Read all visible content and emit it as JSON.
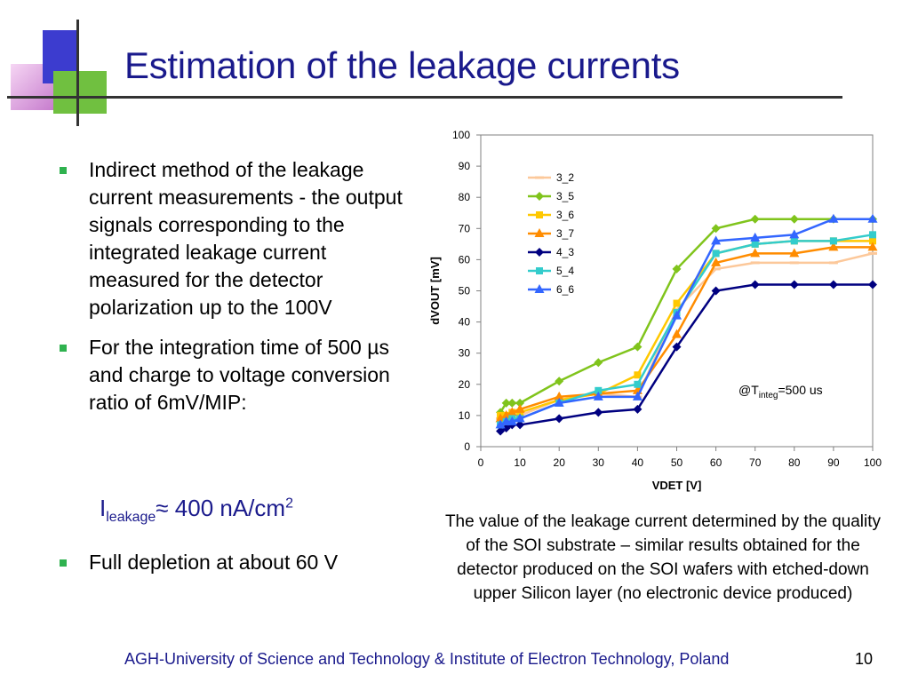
{
  "slide": {
    "title": "Estimation of the leakage currents",
    "bullets": [
      "Indirect method of the leakage current measurements - the output signals corresponding to the integrated leakage current measured for the detector polarization up to the 100V",
      "For the integration time of 500 µs and charge to voltage conversion ratio of 6mV/MIP:",
      "Full depletion at about 60 V"
    ],
    "formula": {
      "symbol": "I",
      "subscript": "leakage",
      "relation": "≈ 400 nA/cm",
      "superscript": "2"
    },
    "caption": "The value of the leakage current determined by the quality of the SOI substrate – similar results obtained for the detector produced on the SOI wafers with etched-down upper Silicon layer (no electronic device produced)",
    "footer": "AGH-University of Science and Technology & Institute of Electron Technology, Poland",
    "page_number": "10",
    "colors": {
      "title": "#1a1a8c",
      "bullet": "#2fb24f",
      "deco_blue": "#3c3ccf",
      "deco_green": "#70c040",
      "deco_pink": "#f0c8f0"
    }
  },
  "chart_data": {
    "type": "line",
    "xlabel": "VDET  [V]",
    "ylabel": "dVOUT  [mV]",
    "xlim": [
      0,
      100
    ],
    "ylim": [
      0,
      100
    ],
    "xticks": [
      0,
      10,
      20,
      30,
      40,
      50,
      60,
      70,
      80,
      90,
      100
    ],
    "yticks": [
      0,
      10,
      20,
      30,
      40,
      50,
      60,
      70,
      80,
      90,
      100
    ],
    "grid": false,
    "legend_position": "top-left",
    "annotation": {
      "main": "@T",
      "sub": "integ",
      "tail": "=500 us"
    },
    "x": [
      5,
      6.5,
      8,
      10,
      20,
      30,
      40,
      50,
      60,
      70,
      80,
      90,
      100
    ],
    "series": [
      {
        "name": "3_2",
        "color": "#fcc89a",
        "marker": "dash",
        "values": [
          9,
          9,
          9,
          10,
          15,
          17,
          16,
          44,
          57,
          59,
          59,
          59,
          62
        ]
      },
      {
        "name": "3_5",
        "color": "#80c41c",
        "marker": "diamond",
        "values": [
          11,
          14,
          14,
          14,
          21,
          27,
          32,
          57,
          70,
          73,
          73,
          73,
          73
        ]
      },
      {
        "name": "3_6",
        "color": "#ffc800",
        "marker": "square",
        "values": [
          10,
          10,
          11,
          11,
          15,
          17,
          23,
          46,
          62,
          65,
          66,
          66,
          66
        ]
      },
      {
        "name": "3_7",
        "color": "#ff8c00",
        "marker": "triangle",
        "values": [
          9,
          10,
          11,
          12,
          16,
          17,
          18,
          36,
          59,
          62,
          62,
          64,
          64
        ]
      },
      {
        "name": "4_3",
        "color": "#000080",
        "marker": "diamond",
        "values": [
          5,
          6,
          7,
          7,
          9,
          11,
          12,
          32,
          50,
          52,
          52,
          52,
          52
        ]
      },
      {
        "name": "5_4",
        "color": "#33cccc",
        "marker": "square",
        "values": [
          7,
          8,
          9,
          9,
          14,
          18,
          20,
          43,
          62,
          65,
          66,
          66,
          68
        ]
      },
      {
        "name": "6_6",
        "color": "#3366ff",
        "marker": "triangle",
        "values": [
          7,
          8,
          8,
          9,
          14,
          16,
          16,
          42,
          66,
          67,
          68,
          73,
          73
        ]
      }
    ]
  }
}
